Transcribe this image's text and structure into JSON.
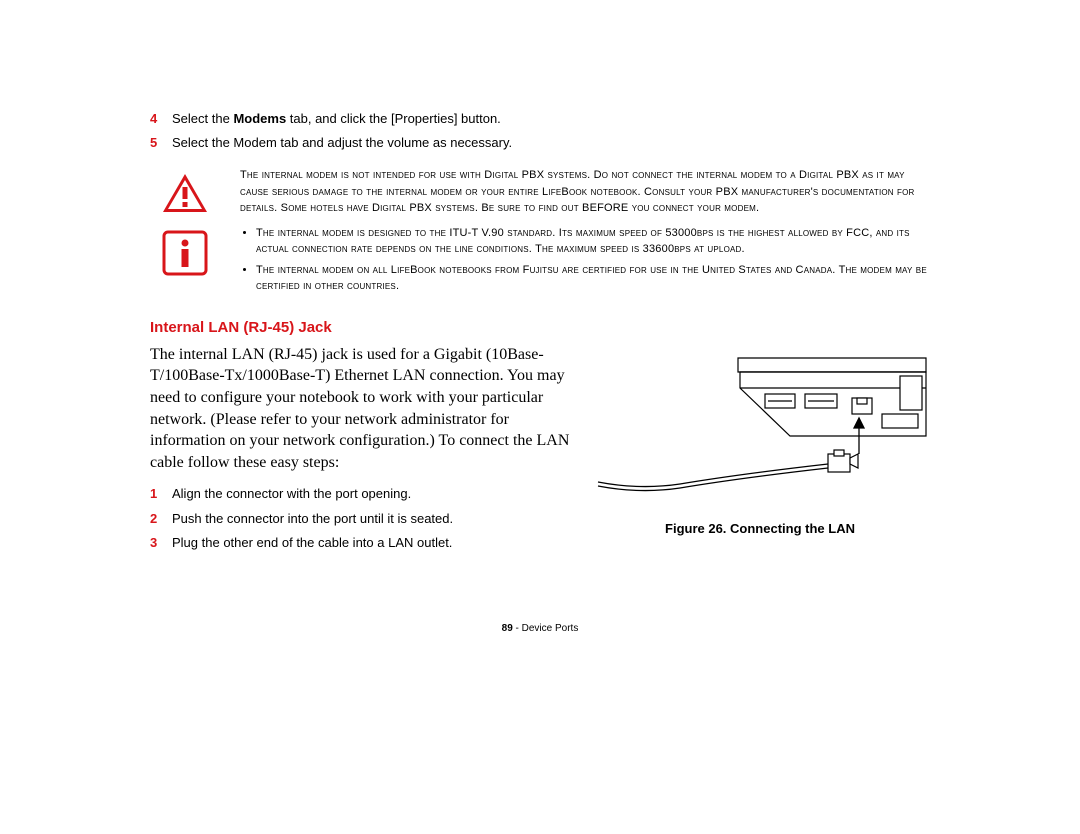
{
  "steps_top": [
    {
      "num": "4",
      "html": "Select the <b>Modems</b> tab, and click the [Properties] button."
    },
    {
      "num": "5",
      "html": "Select the Modem tab and adjust the volume as necessary."
    }
  ],
  "warning_text": "The internal modem is not intended for use with Digital PBX systems. Do not connect the internal modem to a Digital PBX as it may cause serious damage to the internal modem or your entire LifeBook notebook. Consult your PBX manufacturer's documentation for details. Some hotels have Digital PBX systems. Be sure to find out BEFORE you connect your modem.",
  "info_bullets": [
    "The internal modem is designed to the ITU-T V.90 standard. Its maximum speed of 53000bps is the highest allowed by FCC, and its actual connection rate depends on the line conditions. The maximum speed is 33600bps at upload.",
    "The internal modem on all LifeBook notebooks from Fujitsu are certified for use in the United States and Canada. The modem may be certified in other countries."
  ],
  "section_heading": "Internal LAN (RJ-45) Jack",
  "body_paragraph": "The internal LAN (RJ-45) jack is used for a Gigabit (10Base-T/100Base-Tx/1000Base-T) Ethernet LAN connection. You may need to configure your notebook to work with your particular network. (Please refer to your network administrator for information on your network configuration.) To connect the LAN cable follow these easy steps:",
  "steps_lan": [
    {
      "num": "1",
      "html": "Align the connector with the port opening."
    },
    {
      "num": "2",
      "html": "Push the connector into the port until it is seated."
    },
    {
      "num": "3",
      "html": "Plug the other end of the cable into a LAN outlet."
    }
  ],
  "figure_caption": "Figure 26.  Connecting the LAN",
  "footer_page": "89",
  "footer_section": " - Device Ports",
  "colors": {
    "accent_red": "#d8151a",
    "text": "#000000",
    "bg": "#ffffff"
  }
}
